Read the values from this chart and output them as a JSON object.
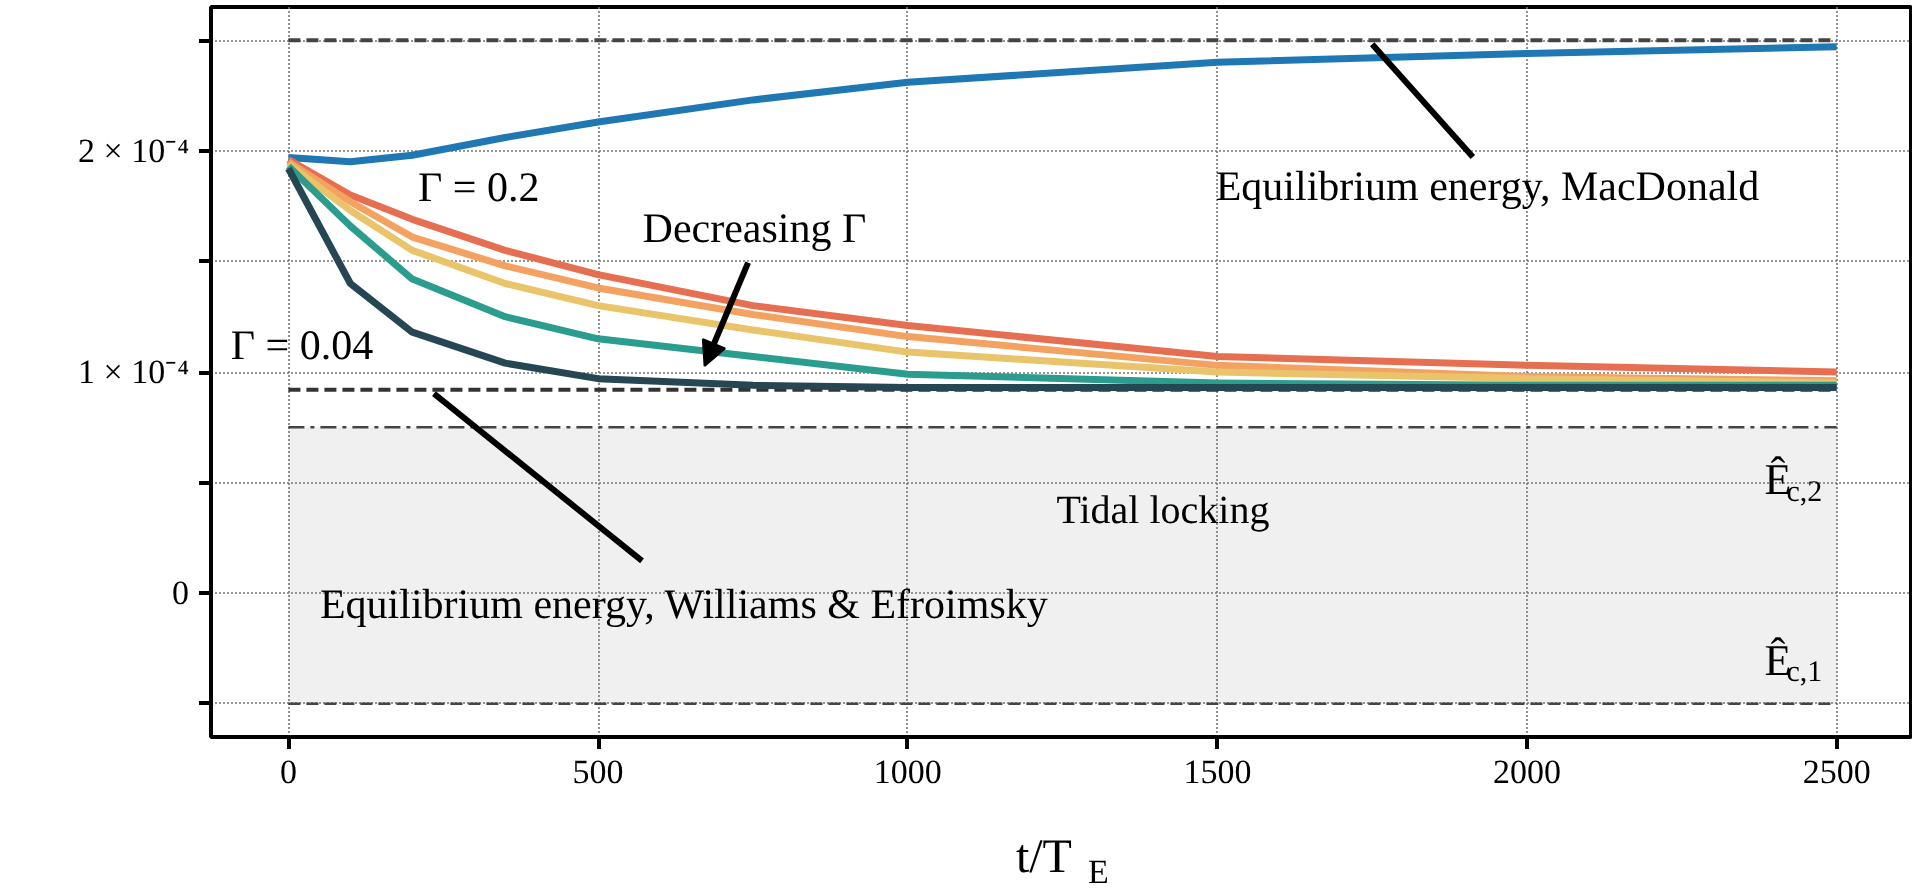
{
  "chart_data": {
    "type": "line",
    "xlabel": "t/T$_{E}$",
    "x": [
      0,
      100,
      200,
      350,
      500,
      750,
      1000,
      1500,
      2000,
      2500
    ],
    "series": [
      {
        "color": "#1f77b4",
        "values": [
          0.000197,
          0.000195,
          0.000198,
          0.000206,
          0.000213,
          0.000223,
          0.000231,
          0.00024,
          0.000244,
          0.000247
        ]
      },
      {
        "color": "#e76f51",
        "values": [
          0.000196,
          0.00018,
          0.000169,
          0.000155,
          0.000144,
          0.00013,
          0.000121,
          0.000107,
          0.000103,
          0.0001
        ]
      },
      {
        "color": "#f4a261",
        "values": [
          0.000195,
          0.000177,
          0.000161,
          0.000148,
          0.000138,
          0.000126,
          0.000116,
          0.000103,
          9.8e-05,
          9.6e-05
        ]
      },
      {
        "color": "#e9c46a",
        "values": [
          0.000194,
          0.000173,
          0.000155,
          0.00014,
          0.00013,
          0.000119,
          0.000109,
          0.0001,
          9.7e-05,
          9.5e-05
        ]
      },
      {
        "color": "#2a9d8f",
        "values": [
          0.000193,
          0.000166,
          0.000142,
          0.000125,
          0.000115,
          0.000107,
          9.9e-05,
          9.5e-05,
          9.4e-05,
          9.4e-05
        ]
      },
      {
        "color": "#264653",
        "values": [
          0.000192,
          0.00014,
          0.000118,
          0.000104,
          9.7e-05,
          9.4e-05,
          9.3e-05,
          9.3e-05,
          9.3e-05,
          9.3e-05
        ]
      }
    ],
    "xlim": [
      -125,
      2620
    ],
    "ylim": [
      -6.5e-05,
      0.000265
    ],
    "xticks": [
      0,
      500,
      1000,
      1500,
      2000,
      2500
    ],
    "yticks": [
      {
        "value": -5e-05,
        "label": null
      },
      {
        "value": 0,
        "label": "0"
      },
      {
        "value": 5e-05,
        "label": null
      },
      {
        "value": 0.0001,
        "label": "1 × 10⁻⁴"
      },
      {
        "value": 0.00015,
        "label": null
      },
      {
        "value": 0.0002,
        "label": "2 × 10⁻⁴"
      },
      {
        "value": 0.00025,
        "label": null
      }
    ],
    "grid": true,
    "line_style": "solid",
    "marker": "none",
    "ref_lines": [
      {
        "axis": "y",
        "value": 0.00025,
        "color": "#444444",
        "line_style": "dashed"
      },
      {
        "axis": "y",
        "value": 9.2e-05,
        "color": "#333333",
        "line_style": "dashed"
      },
      {
        "axis": "y",
        "value": 7.5e-05,
        "color": "#444444",
        "line_style": "dashdot",
        "label": "Ê$_{c,2}$"
      },
      {
        "axis": "y",
        "value": -5e-05,
        "color": "#444444",
        "line_style": "dashed",
        "label": "Ê$_{c,1}$"
      }
    ],
    "bands": [
      {
        "axis": "y",
        "from": -5e-05,
        "to": 7.5e-05,
        "label": "Tidal locking",
        "color": "#f0f0f0"
      }
    ],
    "annotations": [
      {
        "text": "Equilibrium energy, MacDonald",
        "x": 1750,
        "y": 0.00025
      },
      {
        "text": "Equilibrium energy, Williams & Efroimsky",
        "x": 235,
        "y": 9.2e-05
      },
      {
        "text": "Decreasing Γ",
        "x": 672,
        "y": 0.0001
      },
      "Γ = 0.2",
      "Γ = 0.04"
    ]
  }
}
